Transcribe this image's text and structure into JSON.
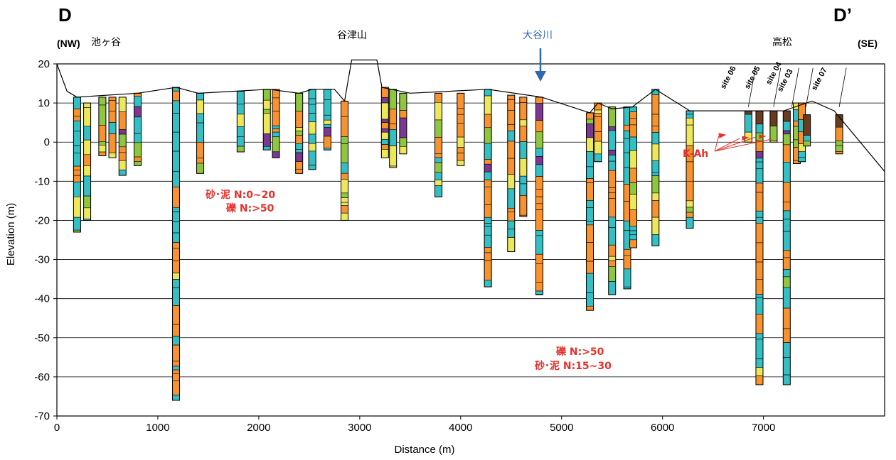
{
  "chart_data": {
    "type": "cross-section",
    "section_start_label": "D",
    "section_end_label": "D’",
    "direction_left": "(NW)",
    "direction_right": "(SE)",
    "xlabel": "Distance (m)",
    "ylabel": "Elevation (m)",
    "xlim": [
      0,
      8200
    ],
    "ylim": [
      -70,
      20
    ],
    "x_ticks": [
      0,
      1000,
      2000,
      3000,
      4000,
      5000,
      6000,
      7000
    ],
    "y_ticks": [
      20,
      10,
      0,
      -10,
      -20,
      -30,
      -40,
      -50,
      -60,
      -70
    ],
    "grid_y": true,
    "place_names": [
      {
        "text": "池ヶ谷",
        "x": 450,
        "kind": "place"
      },
      {
        "text": "谷津山",
        "x": 3000,
        "kind": "mountain"
      },
      {
        "text": "大谷川",
        "x": 4900,
        "kind": "river"
      },
      {
        "text": "高松",
        "x": 7250,
        "kind": "place"
      }
    ],
    "annotations": [
      {
        "lines": [
          "砂･泥 N:0~20",
          "礫 N:>50"
        ],
        "x": 1950,
        "y": -15
      },
      {
        "lines": [
          "礫 N:>50",
          "砂･泥 N:15~30"
        ],
        "x": 5100,
        "y": -57
      }
    ],
    "marker_label": "K-Ah",
    "sites": [
      {
        "name": "site 06",
        "x": 6850
      },
      {
        "name": "site 05",
        "x": 7100
      },
      {
        "name": "site 04",
        "x": 7280
      },
      {
        "name": "site 03",
        "x": 7420
      },
      {
        "name": "site 07",
        "x": 7750
      }
    ],
    "colors": {
      "gravel": "#f7922e",
      "sand": "#33bfc4",
      "silt": "#ede85a",
      "clay": "#8ec63f",
      "peat": "#7a3893",
      "fill": "#6a3b1e",
      "arrow": "#2d68b4",
      "annotation": "#e8302a"
    },
    "boreholes": [
      {
        "x": 200,
        "top": 11.5,
        "bottom": -23
      },
      {
        "x": 300,
        "top": 10,
        "bottom": -20
      },
      {
        "x": 450,
        "top": 11.5,
        "bottom": -3.5
      },
      {
        "x": 550,
        "top": 11.5,
        "bottom": -4
      },
      {
        "x": 650,
        "top": 11.5,
        "bottom": -8.5
      },
      {
        "x": 800,
        "top": 12.5,
        "bottom": -6
      },
      {
        "x": 1180,
        "top": 14,
        "bottom": -66
      },
      {
        "x": 1420,
        "top": 12.5,
        "bottom": -8
      },
      {
        "x": 1820,
        "top": 13,
        "bottom": -2.5
      },
      {
        "x": 2080,
        "top": 13.5,
        "bottom": -2
      },
      {
        "x": 2170,
        "top": 13.5,
        "bottom": -4
      },
      {
        "x": 2400,
        "top": 12.5,
        "bottom": -8
      },
      {
        "x": 2530,
        "top": 13.5,
        "bottom": -7
      },
      {
        "x": 2680,
        "top": 13.5,
        "bottom": -2
      },
      {
        "x": 2850,
        "top": 10.5,
        "bottom": -20
      },
      {
        "x": 3250,
        "top": 14,
        "bottom": -4
      },
      {
        "x": 3330,
        "top": 13.5,
        "bottom": -6.5
      },
      {
        "x": 3430,
        "top": 12.5,
        "bottom": -3
      },
      {
        "x": 3780,
        "top": 12.5,
        "bottom": -14
      },
      {
        "x": 4000,
        "top": 12.5,
        "bottom": -6
      },
      {
        "x": 4270,
        "top": 13.5,
        "bottom": -37
      },
      {
        "x": 4500,
        "top": 12,
        "bottom": -28
      },
      {
        "x": 4620,
        "top": 11.5,
        "bottom": -19
      },
      {
        "x": 4780,
        "top": 11.5,
        "bottom": -39
      },
      {
        "x": 5280,
        "top": 7.5,
        "bottom": -43
      },
      {
        "x": 5360,
        "top": 10,
        "bottom": -5
      },
      {
        "x": 5500,
        "top": 9,
        "bottom": -39
      },
      {
        "x": 5650,
        "top": 9,
        "bottom": -37.5
      },
      {
        "x": 5710,
        "top": 9,
        "bottom": -27
      },
      {
        "x": 5930,
        "top": 13.5,
        "bottom": -26.5
      },
      {
        "x": 6270,
        "top": 8,
        "bottom": -22
      },
      {
        "x": 6850,
        "top": 8,
        "bottom": 0
      },
      {
        "x": 6960,
        "top": 8,
        "bottom": -62
      },
      {
        "x": 7100,
        "top": 8,
        "bottom": 0
      },
      {
        "x": 7230,
        "top": 8,
        "bottom": -62
      },
      {
        "x": 7330,
        "top": 10,
        "bottom": -5.5
      },
      {
        "x": 7380,
        "top": 10,
        "bottom": -5
      },
      {
        "x": 7430,
        "top": 7,
        "bottom": -1
      },
      {
        "x": 7750,
        "top": 7,
        "bottom": -3
      }
    ],
    "ground_surface": [
      [
        0,
        20
      ],
      [
        100,
        13
      ],
      [
        200,
        11.5
      ],
      [
        800,
        12.5
      ],
      [
        1180,
        14
      ],
      [
        1400,
        12.5
      ],
      [
        2100,
        13.5
      ],
      [
        2400,
        12.5
      ],
      [
        2530,
        13.5
      ],
      [
        2750,
        13.5
      ],
      [
        2850,
        10.5
      ],
      [
        2920,
        21
      ],
      [
        3170,
        21
      ],
      [
        3220,
        14
      ],
      [
        3500,
        12.5
      ],
      [
        4270,
        13.5
      ],
      [
        4800,
        11.5
      ],
      [
        5280,
        7.5
      ],
      [
        5360,
        10
      ],
      [
        5500,
        8.5
      ],
      [
        5700,
        9
      ],
      [
        5930,
        13.5
      ],
      [
        6270,
        8
      ],
      [
        7200,
        8
      ],
      [
        7480,
        10.5
      ],
      [
        7700,
        8
      ],
      [
        8200,
        -7.5
      ]
    ]
  }
}
